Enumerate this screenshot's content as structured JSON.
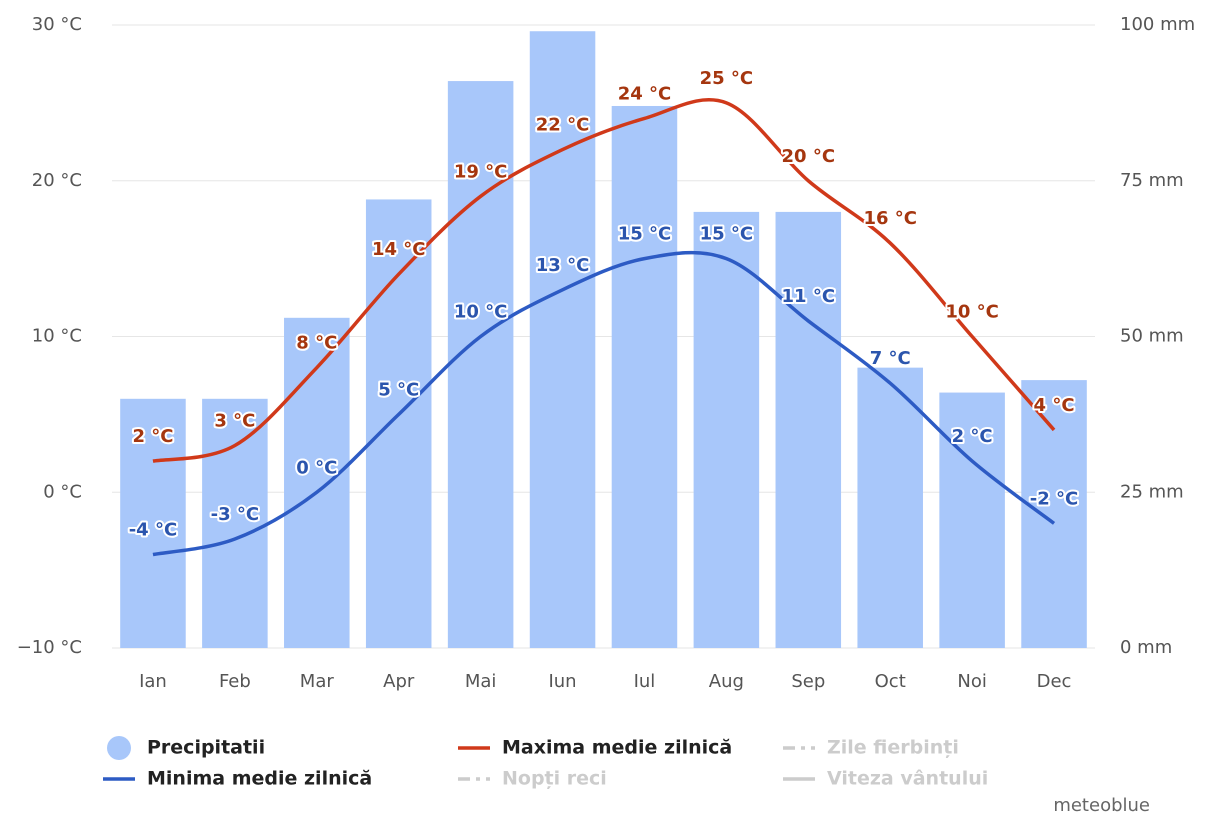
{
  "chart_data": {
    "type": "bar",
    "categories": [
      "Ian",
      "Feb",
      "Mar",
      "Apr",
      "Mai",
      "Iun",
      "Iul",
      "Aug",
      "Sep",
      "Oct",
      "Noi",
      "Dec"
    ],
    "series": [
      {
        "name": "Precipitatii",
        "type": "bar",
        "axis": "y2",
        "color": "#a8c7fa",
        "values": [
          40,
          40,
          53,
          72,
          91,
          99,
          87,
          70,
          70,
          45,
          41,
          43
        ]
      },
      {
        "name": "Maxima medie zilnică",
        "type": "line",
        "color": "#d0391a",
        "label_color": "#a5360f",
        "values": [
          2,
          3,
          8,
          14,
          19,
          22,
          24,
          25,
          20,
          16,
          10,
          4
        ],
        "value_labels": [
          "2 °C",
          "3 °C",
          "8 °C",
          "14 °C",
          "19 °C",
          "22 °C",
          "24 °C",
          "25 °C",
          "20 °C",
          "16 °C",
          "10 °C",
          "4 °C"
        ]
      },
      {
        "name": "Minima medie zilnică",
        "type": "line",
        "color": "#2d5bc4",
        "label_color": "#2b55ad",
        "values": [
          -4,
          -3,
          0,
          5,
          10,
          13,
          15,
          15,
          11,
          7,
          2,
          -2
        ],
        "value_labels": [
          "-4 °C",
          "-3 °C",
          "0 °C",
          "5 °C",
          "10 °C",
          "13 °C",
          "15 °C",
          "15 °C",
          "11 °C",
          "7 °C",
          "2 °C",
          "-2 °C"
        ]
      }
    ],
    "legend_hidden": [
      {
        "name": "Zile fierbinți",
        "style": "dash",
        "color": "#cccccc"
      },
      {
        "name": "Nopți reci",
        "style": "dash",
        "color": "#cccccc"
      },
      {
        "name": "Viteza vântului",
        "style": "line",
        "color": "#cccccc"
      }
    ],
    "ylim": [
      -10,
      30
    ],
    "yticks": [
      {
        "value": -10,
        "label": "−10 °C"
      },
      {
        "value": 0,
        "label": "0 °C"
      },
      {
        "value": 10,
        "label": "10 °C"
      },
      {
        "value": 20,
        "label": "20 °C"
      },
      {
        "value": 30,
        "label": "30 °C"
      }
    ],
    "y2lim": [
      0,
      100
    ],
    "y2ticks": [
      {
        "value": 0,
        "label": "0 mm"
      },
      {
        "value": 25,
        "label": "25 mm"
      },
      {
        "value": 50,
        "label": "50 mm"
      },
      {
        "value": 75,
        "label": "75 mm"
      },
      {
        "value": 100,
        "label": "100 mm"
      }
    ],
    "grid": true,
    "credit": "meteoblue"
  }
}
